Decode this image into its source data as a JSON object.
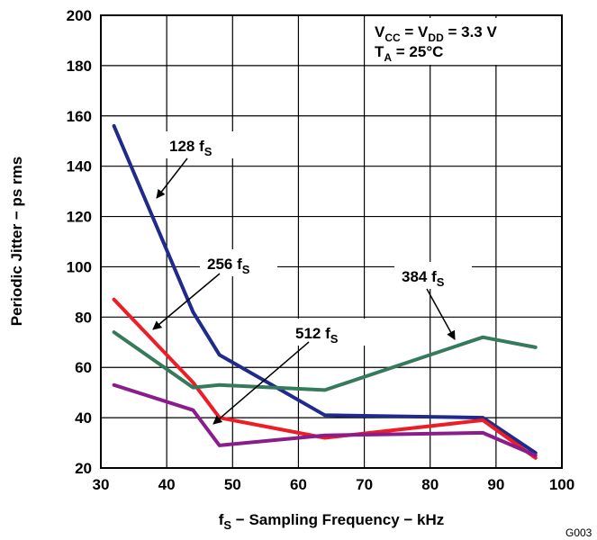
{
  "chart_data": {
    "type": "line",
    "xlabel_main": "f",
    "xlabel_sub": "S",
    "xlabel_rest": " − Sampling Frequency − kHz",
    "ylabel": "Periodic Jitter − ps rms",
    "xlim": [
      30,
      100
    ],
    "ylim": [
      20,
      200
    ],
    "x_ticks": [
      "30",
      "40",
      "50",
      "60",
      "70",
      "80",
      "90",
      "100"
    ],
    "y_ticks": [
      "20",
      "40",
      "60",
      "80",
      "100",
      "120",
      "140",
      "160",
      "180",
      "200"
    ],
    "grid": true,
    "conditions": {
      "line1": {
        "main": "V",
        "sub1": "CC",
        "mid": " = V",
        "sub2": "DD",
        "rest": " = 3.3 V"
      },
      "line2": {
        "main": "T",
        "sub": "A",
        "rest": " = 25°C"
      }
    },
    "series": [
      {
        "name": "128 fS",
        "label_main": "128 f",
        "label_sub": "S",
        "color": "#1f2a8c",
        "x": [
          32,
          44,
          48,
          64,
          88,
          96
        ],
        "y": [
          156,
          82,
          65,
          41,
          40,
          26
        ]
      },
      {
        "name": "256 fS",
        "label_main": "256 f",
        "label_sub": "S",
        "color": "#ee1c25",
        "x": [
          32,
          44,
          48,
          64,
          88,
          96
        ],
        "y": [
          87,
          54,
          40,
          32,
          39,
          24
        ]
      },
      {
        "name": "384 fS",
        "label_main": "384 f",
        "label_sub": "S",
        "color": "#357a5a",
        "x": [
          32,
          44,
          48,
          64,
          88,
          96
        ],
        "y": [
          74,
          52,
          53,
          51,
          72,
          68
        ]
      },
      {
        "name": "512 fS",
        "label_main": "512 f",
        "label_sub": "S",
        "color": "#8b1c8c",
        "x": [
          32,
          44,
          48,
          64,
          88,
          96
        ],
        "y": [
          53,
          43,
          29,
          33,
          34,
          25
        ]
      }
    ],
    "figure_code": "G003"
  }
}
